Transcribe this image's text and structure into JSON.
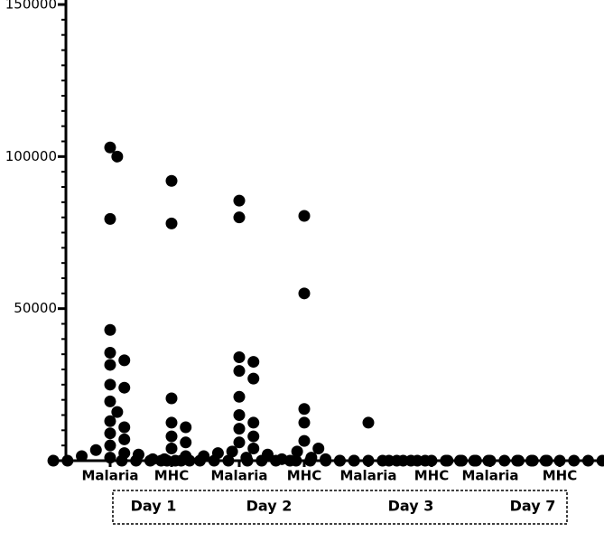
{
  "chart_data": {
    "type": "dot",
    "categories": [
      "Malaria",
      "MHC",
      "Malaria",
      "MHC",
      "Malaria",
      "MHC",
      "Malaria",
      "MHC"
    ],
    "groups": [
      "Day 1",
      "Day 2",
      "Day 3",
      "Day 7"
    ],
    "color": "#000000",
    "ylim": [
      0,
      150000
    ],
    "yticks": [
      0,
      50000,
      100000,
      150000
    ],
    "values": [
      [
        103000,
        100000,
        79500,
        43000,
        35500,
        33000,
        31500,
        25000,
        24000,
        19500,
        16000,
        13000,
        11000,
        9000,
        7000,
        5000,
        3500,
        2500,
        2000,
        1500,
        1000,
        500,
        0,
        0,
        0,
        0
      ],
      [
        92000,
        78000,
        20500,
        12500,
        11000,
        8000,
        6000,
        4000,
        1500,
        500,
        0,
        0,
        0,
        0,
        0,
        0
      ],
      [
        85500,
        80000,
        34000,
        32500,
        29500,
        27000,
        21000,
        15000,
        12500,
        10500,
        8000,
        6000,
        4000,
        3000,
        2500,
        2000,
        1500,
        1000,
        500,
        0,
        0,
        0,
        0,
        0
      ],
      [
        80500,
        55000,
        17000,
        12500,
        6500,
        4000,
        3000,
        1000,
        500,
        0,
        0,
        0,
        0,
        0,
        0
      ],
      [
        12500,
        0,
        0,
        0,
        0,
        0,
        0,
        0,
        0
      ],
      [
        0,
        0,
        0,
        0,
        0,
        0,
        0,
        0
      ],
      [
        0,
        0,
        0,
        0,
        0,
        0,
        0,
        0
      ],
      [
        0,
        0,
        0,
        0,
        0,
        0,
        0,
        0
      ]
    ]
  }
}
